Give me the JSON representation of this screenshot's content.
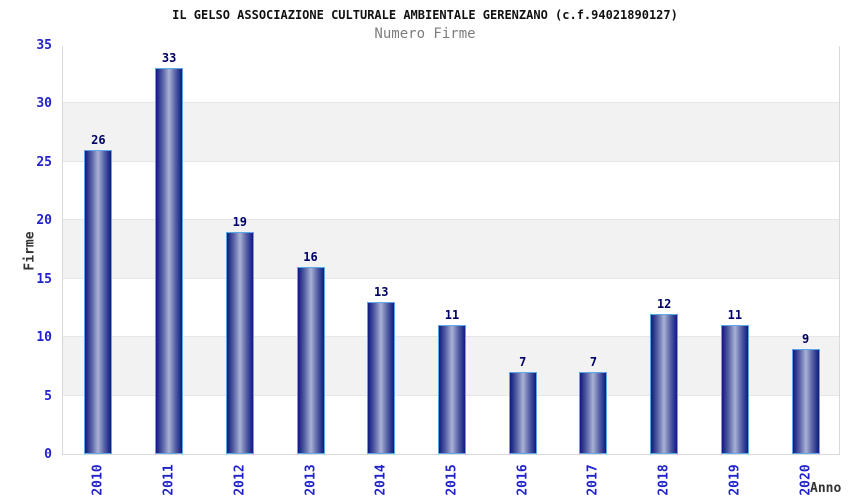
{
  "chart_data": {
    "type": "bar",
    "title": "IL GELSO ASSOCIAZIONE CULTURALE AMBIENTALE GERENZANO (c.f.94021890127)",
    "subtitle": "Numero Firme",
    "xlabel": "Anno",
    "ylabel": "Firme",
    "categories": [
      "2010",
      "2011",
      "2012",
      "2013",
      "2014",
      "2015",
      "2016",
      "2017",
      "2018",
      "2019",
      "2020"
    ],
    "values": [
      26,
      33,
      19,
      16,
      13,
      11,
      7,
      7,
      12,
      11,
      9
    ],
    "ylim": [
      0,
      35
    ],
    "ytick_step": 5,
    "yticks": [
      0,
      5,
      10,
      15,
      20,
      25,
      30,
      35
    ],
    "grid": "horizontal-alternating-bands",
    "legend": "none",
    "bar_label_position": "above"
  },
  "colors": {
    "title": "#111111",
    "subtitle": "#7d7d7d",
    "tick_label": "#2222cc",
    "value_label": "#000066",
    "axis_label": "#333333",
    "bar_edge": "#101a7e",
    "bar_center": "#a9b1d6",
    "bar_border": "#5ea8e8",
    "band_gray": "#f2f2f2",
    "gridline": "#e6e6e6",
    "plot_border": "#d9d9d9"
  }
}
